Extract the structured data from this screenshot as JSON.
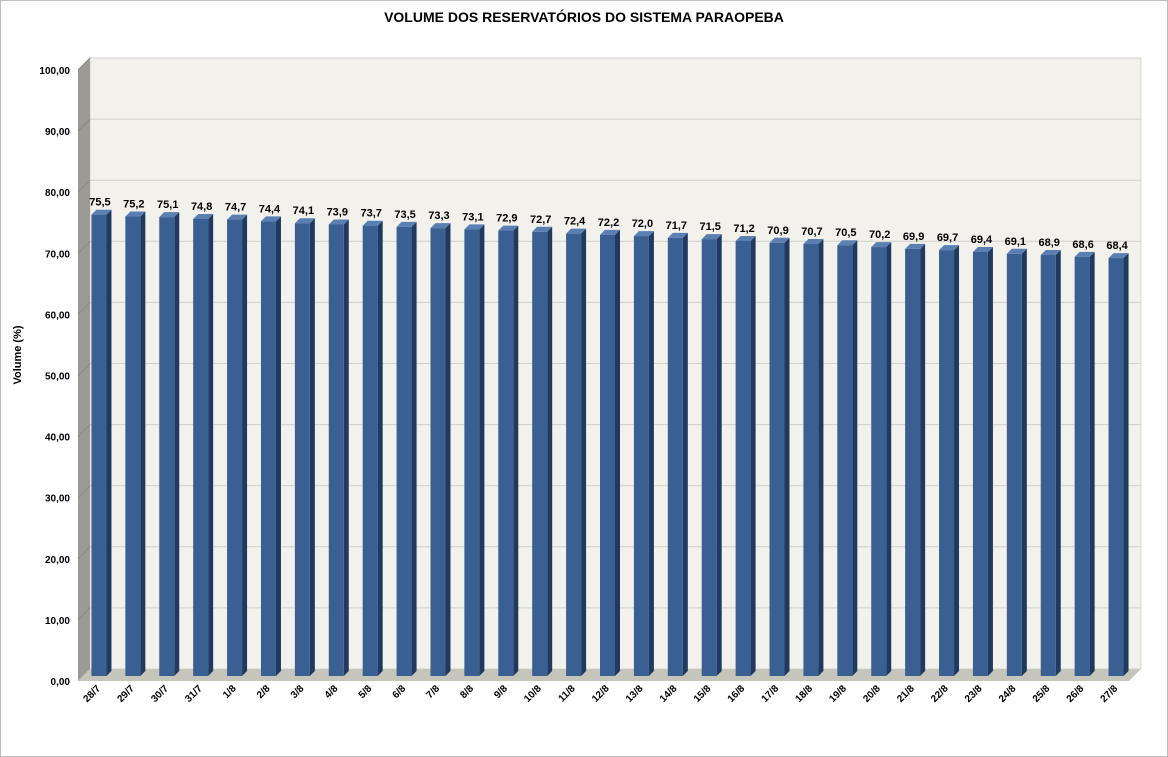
{
  "chart_data": {
    "type": "bar",
    "title": "VOLUME DOS RESERVATÓRIOS DO SISTEMA PARAOPEBA",
    "xlabel": "",
    "ylabel": "Volume (%)",
    "ylim": [
      0,
      100
    ],
    "y_ticks": [
      "0,00",
      "10,00",
      "20,00",
      "30,00",
      "40,00",
      "50,00",
      "60,00",
      "70,00",
      "80,00",
      "90,00",
      "100,00"
    ],
    "grid": true,
    "style": "3d-column",
    "categories": [
      "28/7",
      "29/7",
      "30/7",
      "31/7",
      "1/8",
      "2/8",
      "3/8",
      "4/8",
      "5/8",
      "6/8",
      "7/8",
      "8/8",
      "9/8",
      "10/8",
      "11/8",
      "12/8",
      "13/8",
      "14/8",
      "15/8",
      "16/8",
      "17/8",
      "18/8",
      "19/8",
      "20/8",
      "21/8",
      "22/8",
      "23/8",
      "24/8",
      "25/8",
      "26/8",
      "27/8"
    ],
    "values": [
      75.5,
      75.2,
      75.1,
      74.8,
      74.7,
      74.4,
      74.1,
      73.9,
      73.7,
      73.5,
      73.3,
      73.1,
      72.9,
      72.7,
      72.4,
      72.2,
      72.0,
      71.7,
      71.5,
      71.2,
      70.9,
      70.7,
      70.5,
      70.2,
      69.9,
      69.7,
      69.4,
      69.1,
      68.9,
      68.6,
      68.4
    ],
    "data_labels": [
      "75,5",
      "75,2",
      "75,1",
      "74,8",
      "74,7",
      "74,4",
      "74,1",
      "73,9",
      "73,7",
      "73,5",
      "73,3",
      "73,1",
      "72,9",
      "72,7",
      "72,4",
      "72,2",
      "72,0",
      "71,7",
      "71,5",
      "71,2",
      "70,9",
      "70,7",
      "70,5",
      "70,2",
      "69,9",
      "69,7",
      "69,4",
      "69,1",
      "68,9",
      "68,6",
      "68,4"
    ],
    "colors": {
      "bar_front": "#3a5f93",
      "bar_side": "#1f3a5e",
      "bar_top": "#5a7fb3",
      "plot_back": "#f2f1ec",
      "wall_side": "#9b9b93",
      "floor": "#c6c5bc",
      "gridline": "#d0d0c8"
    }
  }
}
